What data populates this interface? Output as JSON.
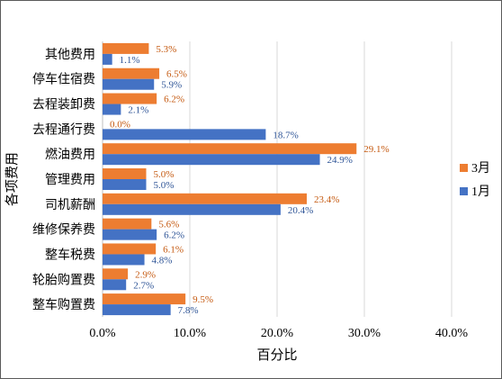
{
  "chart_data": {
    "type": "bar",
    "orientation": "horizontal",
    "categories": [
      "其他费用",
      "停车住宿费",
      "去程装卸费",
      "去程通行费",
      "燃油费用",
      "管理费用",
      "司机薪酬",
      "维修保养费",
      "整车税费",
      "轮胎购置费",
      "整车购置费"
    ],
    "series": [
      {
        "name": "3月",
        "color": "#ED7D31",
        "values": [
          5.3,
          6.5,
          6.2,
          0.0,
          29.1,
          5.0,
          23.4,
          5.6,
          6.1,
          2.9,
          9.5
        ],
        "labels": [
          "5.3%",
          "6.5%",
          "6.2%",
          "0.0%",
          "29.1%",
          "5.0%",
          "23.4%",
          "5.6%",
          "6.1%",
          "2.9%",
          "9.5%"
        ]
      },
      {
        "name": "1月",
        "color": "#4472C4",
        "values": [
          1.1,
          5.9,
          2.1,
          18.7,
          24.9,
          5.0,
          20.4,
          6.2,
          4.8,
          2.7,
          7.8
        ],
        "labels": [
          "1.1%",
          "5.9%",
          "2.1%",
          "18.7%",
          "24.9%",
          "5.0%",
          "20.4%",
          "6.2%",
          "4.8%",
          "2.7%",
          "7.8%"
        ]
      }
    ],
    "xlabel": "百分比",
    "ylabel": "各项费用",
    "xlim": [
      0,
      40
    ],
    "xticks": [
      "0.0%",
      "10.0%",
      "20.0%",
      "30.0%",
      "40.0%"
    ],
    "grid": "vertical",
    "legend": "right"
  }
}
